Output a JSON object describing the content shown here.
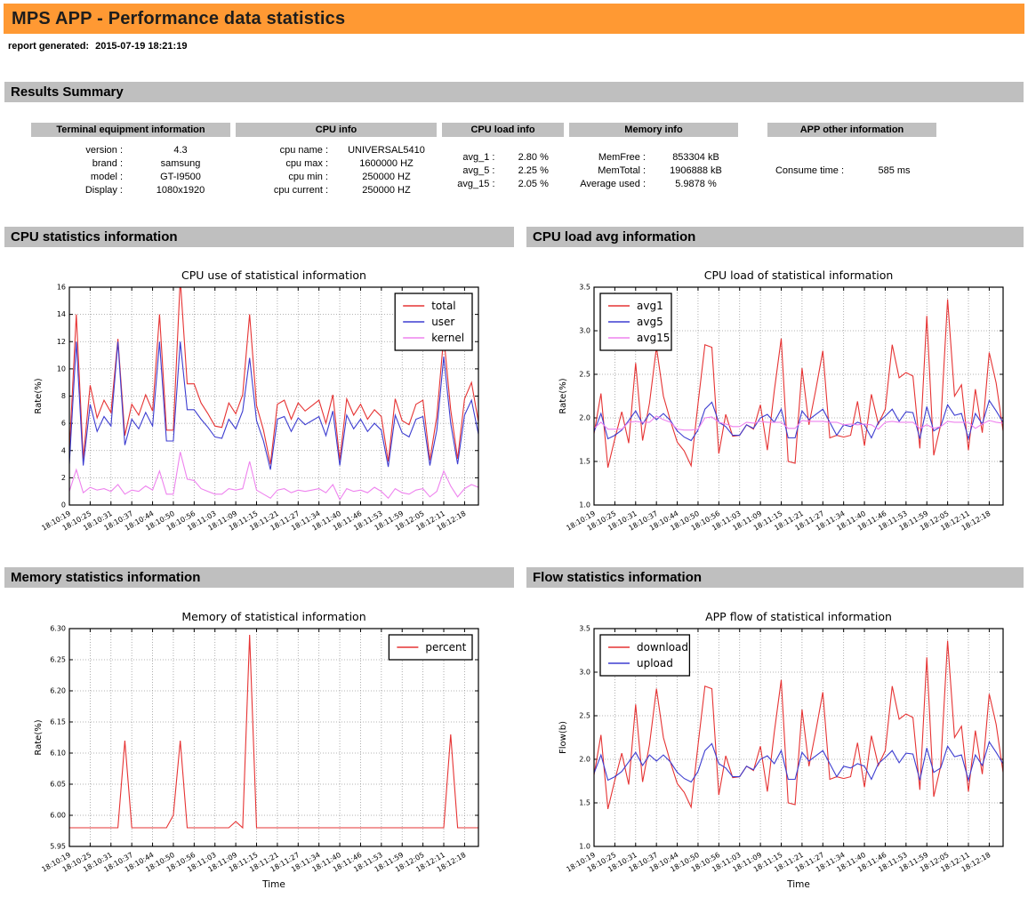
{
  "page": {
    "title": "MPS APP - Performance data statistics",
    "report_generated_label": "report generated:",
    "report_generated_value": "2015-07-19 18:21:19"
  },
  "theme": {
    "header_bg": "#FF9933",
    "section_bg": "#BFBFBF",
    "table_header_bg": "#C0C0C0",
    "line_red": "#e63333",
    "line_blue": "#3d3dd0",
    "line_violet": "#ee82ee"
  },
  "sections": {
    "results_summary": "Results Summary",
    "cpu_stats": "CPU statistics information",
    "cpu_load": "CPU load avg information",
    "memory_stats": "Memory statistics information",
    "flow_stats": "Flow statistics information"
  },
  "summary_table": {
    "groups": [
      {
        "header": "Terminal equipment information",
        "rows": [
          [
            "version :",
            "4.3"
          ],
          [
            "brand :",
            "samsung"
          ],
          [
            "model :",
            "GT-I9500"
          ],
          [
            "Display :",
            "1080x1920"
          ]
        ]
      },
      {
        "header": "CPU info",
        "rows": [
          [
            "cpu name :",
            "UNIVERSAL5410"
          ],
          [
            "cpu max :",
            "1600000 HZ"
          ],
          [
            "cpu min :",
            "250000 HZ"
          ],
          [
            "cpu current :",
            "250000 HZ"
          ]
        ]
      },
      {
        "header": "CPU load info",
        "rows": [
          [
            "avg_1 :",
            "2.80 %"
          ],
          [
            "avg_5 :",
            "2.25 %"
          ],
          [
            "avg_15 :",
            "2.05 %"
          ]
        ]
      },
      {
        "header": "Memory info",
        "rows": [
          [
            "MemFree :",
            "853304 kB"
          ],
          [
            "MemTotal :",
            "1906888 kB"
          ],
          [
            "Average used :",
            "5.9878 %"
          ]
        ]
      },
      {
        "header": "APP other information",
        "rows": [
          [
            "Consume time :",
            "585 ms"
          ]
        ]
      }
    ]
  },
  "chart_data": [
    {
      "type": "line",
      "title": "CPU use of statistical information",
      "xlabel": "",
      "ylabel": "Rate(%)",
      "ylim": [
        0,
        16
      ],
      "ytick_step": 2,
      "ydecimals": 0,
      "grid": true,
      "legend_pos": "ne",
      "points_per_tick": 3,
      "xticklabels": [
        "18:10:19",
        "18:10:25",
        "18:10:31",
        "18:10:37",
        "18:10:44",
        "18:10:50",
        "18:10:56",
        "18:11:03",
        "18:11:09",
        "18:11:15",
        "18:11:21",
        "18:11:27",
        "18:11:34",
        "18:11:40",
        "18:11:46",
        "18:11:53",
        "18:11:59",
        "18:12:05",
        "18:12:11",
        "18:12:18"
      ],
      "series": [
        {
          "name": "total",
          "color": "#e63333",
          "values": [
            3.9,
            14.0,
            3.4,
            8.8,
            6.4,
            7.7,
            6.8,
            12.2,
            5.1,
            7.4,
            6.6,
            8.1,
            6.9,
            14.0,
            5.5,
            5.5,
            16.6,
            8.9,
            8.9,
            7.5,
            6.7,
            5.8,
            5.7,
            7.5,
            6.7,
            8.1,
            14.0,
            7.3,
            5.5,
            3.0,
            7.4,
            7.7,
            6.3,
            7.5,
            6.9,
            7.3,
            7.7,
            6.0,
            8.1,
            3.3,
            7.8,
            6.6,
            7.4,
            6.3,
            7.0,
            6.5,
            3.2,
            7.8,
            6.2,
            5.9,
            7.4,
            7.7,
            3.3,
            6.5,
            12.4,
            7.0,
            3.4,
            7.8,
            9.0,
            6.1
          ]
        },
        {
          "name": "user",
          "color": "#3d3dd0",
          "values": [
            3.0,
            12.0,
            2.9,
            7.4,
            5.4,
            6.5,
            5.8,
            12.0,
            4.4,
            6.3,
            5.6,
            6.8,
            5.8,
            12.0,
            4.7,
            4.7,
            12.0,
            7.0,
            7.0,
            6.3,
            5.7,
            5.0,
            4.9,
            6.3,
            5.6,
            6.9,
            10.8,
            6.2,
            4.7,
            2.6,
            6.3,
            6.5,
            5.4,
            6.4,
            5.9,
            6.2,
            6.5,
            5.1,
            6.9,
            2.9,
            6.6,
            5.6,
            6.3,
            5.4,
            6.0,
            5.5,
            2.8,
            6.6,
            5.3,
            5.0,
            6.3,
            6.5,
            2.9,
            5.5,
            10.9,
            6.0,
            3.0,
            6.6,
            7.7,
            5.2
          ]
        },
        {
          "name": "kernel",
          "color": "#ee82ee",
          "values": [
            1.0,
            2.6,
            0.9,
            1.3,
            1.1,
            1.2,
            1.0,
            1.5,
            0.8,
            1.1,
            1.0,
            1.4,
            1.1,
            2.5,
            0.8,
            0.8,
            3.9,
            1.9,
            1.8,
            1.2,
            1.0,
            0.8,
            0.8,
            1.2,
            1.1,
            1.2,
            3.2,
            1.1,
            0.8,
            0.5,
            1.1,
            1.2,
            0.9,
            1.1,
            1.0,
            1.1,
            1.2,
            0.9,
            1.5,
            0.4,
            1.2,
            1.0,
            1.1,
            0.9,
            1.3,
            1.0,
            0.5,
            1.2,
            0.9,
            0.8,
            1.1,
            1.2,
            0.6,
            1.0,
            2.5,
            1.4,
            0.6,
            1.2,
            1.5,
            1.3
          ]
        }
      ]
    },
    {
      "type": "line",
      "title": "CPU load of statistical information",
      "xlabel": "",
      "ylabel": "Rate(%)",
      "ylim": [
        1.0,
        3.5
      ],
      "ytick_step": 0.5,
      "ydecimals": 1,
      "grid": true,
      "legend_pos": "nw",
      "points_per_tick": 3,
      "xticklabels": [
        "18:10:19",
        "18:10:25",
        "18:10:31",
        "18:10:37",
        "18:10:44",
        "18:10:50",
        "18:10:56",
        "18:11:03",
        "18:11:09",
        "18:11:15",
        "18:11:21",
        "18:11:27",
        "18:11:34",
        "18:11:40",
        "18:11:46",
        "18:11:53",
        "18:11:59",
        "18:12:05",
        "18:12:11",
        "18:12:18"
      ],
      "series": [
        {
          "name": "avg1",
          "color": "#e63333",
          "values": [
            1.82,
            2.28,
            1.43,
            1.76,
            2.07,
            1.71,
            2.63,
            1.74,
            2.17,
            2.81,
            2.25,
            1.97,
            1.72,
            1.62,
            1.45,
            2.16,
            2.84,
            2.81,
            1.59,
            2.04,
            1.79,
            1.8,
            1.92,
            1.87,
            2.15,
            1.63,
            2.31,
            2.91,
            1.5,
            1.48,
            2.57,
            1.92,
            2.33,
            2.77,
            1.77,
            1.8,
            1.78,
            1.8,
            2.19,
            1.68,
            2.27,
            1.93,
            2.1,
            2.84,
            2.46,
            2.52,
            2.48,
            1.65,
            3.17,
            1.57,
            1.92,
            3.36,
            2.25,
            2.38,
            1.63,
            2.33,
            1.83,
            2.75,
            2.4,
            1.85
          ]
        },
        {
          "name": "avg5",
          "color": "#3d3dd0",
          "values": [
            1.84,
            2.05,
            1.76,
            1.8,
            1.86,
            1.97,
            2.08,
            1.93,
            2.05,
            1.98,
            2.05,
            1.97,
            1.85,
            1.78,
            1.74,
            1.86,
            2.1,
            2.18,
            1.95,
            1.9,
            1.8,
            1.8,
            1.92,
            1.88,
            2.0,
            2.04,
            1.95,
            2.1,
            1.77,
            1.77,
            2.08,
            1.98,
            2.04,
            2.1,
            1.95,
            1.8,
            1.92,
            1.9,
            1.95,
            1.92,
            1.77,
            1.95,
            2.02,
            2.1,
            1.96,
            2.07,
            2.06,
            1.76,
            2.13,
            1.85,
            1.9,
            2.15,
            2.03,
            2.05,
            1.76,
            2.05,
            1.93,
            2.2,
            2.08,
            1.95
          ]
        },
        {
          "name": "avg15",
          "color": "#ee82ee",
          "values": [
            1.88,
            1.95,
            1.87,
            1.87,
            1.87,
            1.95,
            1.96,
            1.95,
            1.95,
            2.02,
            1.98,
            1.95,
            1.87,
            1.86,
            1.86,
            1.87,
            2.0,
            2.01,
            1.95,
            1.93,
            1.9,
            1.9,
            1.95,
            1.94,
            1.96,
            1.95,
            1.95,
            1.95,
            1.88,
            1.88,
            1.97,
            1.96,
            1.96,
            1.96,
            1.95,
            1.95,
            1.92,
            1.93,
            1.92,
            1.93,
            1.92,
            1.87,
            1.95,
            1.96,
            1.95,
            1.95,
            1.95,
            1.88,
            1.92,
            1.88,
            1.9,
            1.96,
            1.95,
            1.95,
            1.95,
            1.88,
            1.93,
            1.97,
            1.95,
            1.94
          ]
        }
      ]
    },
    {
      "type": "line",
      "title": "Memory of statistical information",
      "xlabel": "Time",
      "ylabel": "Rate(%)",
      "ylim": [
        5.95,
        6.3
      ],
      "ytick_step": 0.05,
      "ydecimals": 2,
      "grid": true,
      "legend_pos": "ne",
      "points_per_tick": 3,
      "xticklabels": [
        "18:10:19",
        "18:10:25",
        "18:10:31",
        "18:10:37",
        "18:10:44",
        "18:10:50",
        "18:10:56",
        "18:11:03",
        "18:11:09",
        "18:11:15",
        "18:11:21",
        "18:11:27",
        "18:11:34",
        "18:11:40",
        "18:11:46",
        "18:11:53",
        "18:11:59",
        "18:12:05",
        "18:12:11",
        "18:12:18"
      ],
      "series": [
        {
          "name": "percent",
          "color": "#e63333",
          "values": [
            5.98,
            5.98,
            5.98,
            5.98,
            5.98,
            5.98,
            5.98,
            5.98,
            6.12,
            5.98,
            5.98,
            5.98,
            5.98,
            5.98,
            5.98,
            6.0,
            6.12,
            5.98,
            5.98,
            5.98,
            5.98,
            5.98,
            5.98,
            5.98,
            5.99,
            5.98,
            6.29,
            5.98,
            5.98,
            5.98,
            5.98,
            5.98,
            5.98,
            5.98,
            5.98,
            5.98,
            5.98,
            5.98,
            5.98,
            5.98,
            5.98,
            5.98,
            5.98,
            5.98,
            5.98,
            5.98,
            5.98,
            5.98,
            5.98,
            5.98,
            5.98,
            5.98,
            5.98,
            5.98,
            5.98,
            6.13,
            5.98,
            5.98,
            5.98,
            5.98
          ]
        }
      ]
    },
    {
      "type": "line",
      "title": "APP flow of statistical information",
      "xlabel": "Time",
      "ylabel": "Flow(b)",
      "ylim": [
        1.0,
        3.5
      ],
      "ytick_step": 0.5,
      "ydecimals": 1,
      "grid": true,
      "legend_pos": "nw",
      "points_per_tick": 3,
      "xticklabels": [
        "18:10:19",
        "18:10:25",
        "18:10:31",
        "18:10:37",
        "18:10:44",
        "18:10:50",
        "18:10:56",
        "18:11:03",
        "18:11:09",
        "18:11:15",
        "18:11:21",
        "18:11:27",
        "18:11:34",
        "18:11:40",
        "18:11:46",
        "18:11:53",
        "18:11:59",
        "18:12:05",
        "18:12:11",
        "18:12:18"
      ],
      "series": [
        {
          "name": "download",
          "color": "#e63333",
          "values": [
            1.82,
            2.28,
            1.43,
            1.76,
            2.07,
            1.71,
            2.63,
            1.74,
            2.17,
            2.81,
            2.25,
            1.97,
            1.72,
            1.62,
            1.45,
            2.16,
            2.84,
            2.81,
            1.59,
            2.04,
            1.79,
            1.8,
            1.92,
            1.87,
            2.15,
            1.63,
            2.31,
            2.91,
            1.5,
            1.48,
            2.57,
            1.92,
            2.33,
            2.77,
            1.77,
            1.8,
            1.78,
            1.8,
            2.19,
            1.68,
            2.27,
            1.93,
            2.1,
            2.84,
            2.46,
            2.52,
            2.48,
            1.65,
            3.17,
            1.57,
            1.92,
            3.36,
            2.25,
            2.38,
            1.63,
            2.33,
            1.83,
            2.75,
            2.4,
            1.85
          ]
        },
        {
          "name": "upload",
          "color": "#3d3dd0",
          "values": [
            1.84,
            2.05,
            1.76,
            1.8,
            1.86,
            1.97,
            2.08,
            1.93,
            2.05,
            1.98,
            2.05,
            1.97,
            1.85,
            1.78,
            1.74,
            1.86,
            2.1,
            2.18,
            1.95,
            1.9,
            1.8,
            1.8,
            1.92,
            1.88,
            2.0,
            2.04,
            1.95,
            2.1,
            1.77,
            1.77,
            2.08,
            1.98,
            2.04,
            2.1,
            1.95,
            1.8,
            1.92,
            1.9,
            1.95,
            1.92,
            1.77,
            1.95,
            2.02,
            2.1,
            1.96,
            2.07,
            2.06,
            1.76,
            2.13,
            1.85,
            1.9,
            2.15,
            2.03,
            2.05,
            1.76,
            2.05,
            1.93,
            2.2,
            2.08,
            1.95
          ]
        }
      ]
    }
  ]
}
